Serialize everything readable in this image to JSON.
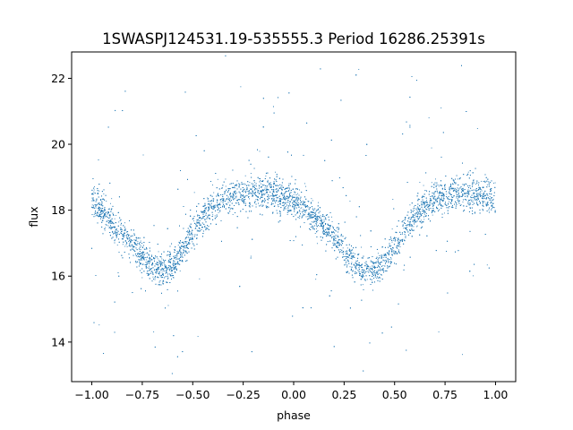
{
  "chart_data": {
    "type": "scatter",
    "title": "1SWASPJ124531.19-535555.3 Period 16286.25391s",
    "xlabel": "phase",
    "ylabel": "flux",
    "xlim": [
      -1.1,
      1.1
    ],
    "ylim": [
      12.8,
      22.8
    ],
    "x_ticks": [
      -1.0,
      -0.75,
      -0.5,
      -0.25,
      0.0,
      0.25,
      0.5,
      0.75,
      1.0
    ],
    "x_tick_labels": [
      "−1.00",
      "−0.75",
      "−0.50",
      "−0.25",
      "0.00",
      "0.25",
      "0.50",
      "0.75",
      "1.00"
    ],
    "y_ticks": [
      14,
      16,
      18,
      20,
      22
    ],
    "y_tick_labels": [
      "14",
      "16",
      "18",
      "20",
      "22"
    ],
    "grid": false,
    "point_color": "#1f77b4",
    "series": [
      {
        "x": [
          -1.0,
          -0.95,
          -0.9,
          -0.85,
          -0.8,
          -0.75,
          -0.7,
          -0.65,
          -0.6,
          -0.55,
          -0.5,
          -0.45,
          -0.4,
          -0.35,
          -0.3,
          -0.25,
          -0.2,
          -0.15,
          -0.1,
          -0.05,
          0.0,
          0.05,
          0.1,
          0.15,
          0.2,
          0.25,
          0.3,
          0.35,
          0.4,
          0.45,
          0.5,
          0.55,
          0.6,
          0.65,
          0.7,
          0.75,
          0.8,
          0.85,
          0.9,
          0.95,
          1.0
        ],
        "y": [
          18.3,
          18.0,
          17.6,
          17.3,
          17.0,
          16.6,
          16.3,
          16.2,
          16.3,
          16.8,
          17.3,
          17.8,
          18.1,
          18.3,
          18.4,
          18.5,
          18.55,
          18.55,
          18.5,
          18.4,
          18.25,
          18.05,
          17.8,
          17.5,
          17.2,
          16.8,
          16.4,
          16.2,
          16.2,
          16.4,
          16.9,
          17.4,
          17.8,
          18.1,
          18.3,
          18.4,
          18.5,
          18.5,
          18.5,
          18.4,
          18.35
        ],
        "spread": 0.45
      }
    ]
  }
}
